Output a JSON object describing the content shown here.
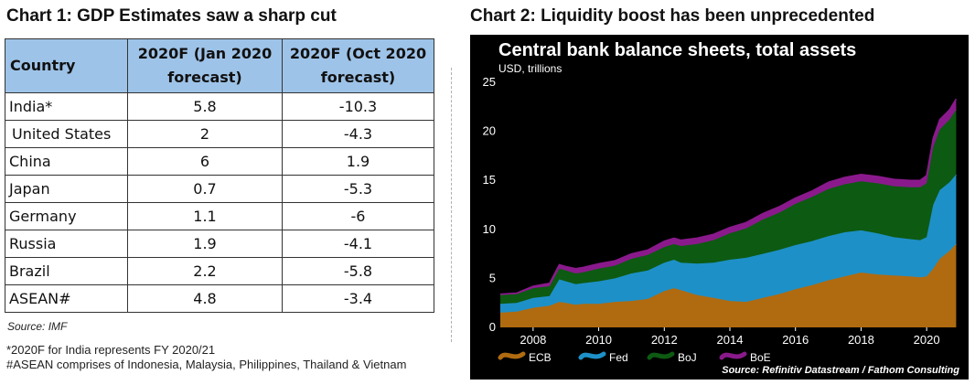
{
  "chart1": {
    "title": "Chart 1: GDP Estimates saw a sharp cut",
    "columns": [
      "Country",
      "2020F (Jan 2020 forecast)",
      "2020F (Oct 2020 forecast)"
    ],
    "rows": [
      [
        "India*",
        "5.8",
        "-10.3"
      ],
      [
        "United States",
        "2",
        "-4.3"
      ],
      [
        "China",
        "6",
        "1.9"
      ],
      [
        "Japan",
        "0.7",
        "-5.3"
      ],
      [
        "Germany",
        "1.1",
        "-6"
      ],
      [
        "Russia",
        "1.9",
        "-4.1"
      ],
      [
        "Brazil",
        "2.2",
        "-5.8"
      ],
      [
        "ASEAN#",
        "4.8",
        "-3.4"
      ]
    ],
    "source": "Source: IMF",
    "footnotes": [
      "*2020F for India represents FY 2020/21",
      "#ASEAN comprises of Indonesia, Malaysia, Philippines, Thailand & Vietnam"
    ]
  },
  "chart2": {
    "heading": "Chart 2: Liquidity boost has been unprecedented",
    "source": "Source: Refinitiv Datastream / Fathom Consulting"
  },
  "chart_data": [
    {
      "type": "table",
      "title": "Chart 1: GDP Estimates saw a sharp cut",
      "columns": [
        "Country",
        "2020F (Jan 2020 forecast)",
        "2020F (Oct 2020 forecast)"
      ],
      "rows": [
        [
          "India*",
          5.8,
          -10.3
        ],
        [
          "United States",
          2,
          -4.3
        ],
        [
          "China",
          6,
          1.9
        ],
        [
          "Japan",
          0.7,
          -5.3
        ],
        [
          "Germany",
          1.1,
          -6
        ],
        [
          "Russia",
          1.9,
          -4.1
        ],
        [
          "Brazil",
          2.2,
          -5.8
        ],
        [
          "ASEAN#",
          4.8,
          -3.4
        ]
      ]
    },
    {
      "type": "area",
      "stacked": true,
      "title": "Central bank balance sheets, total assets",
      "ylabel": "USD, trillions",
      "xlim": [
        2007,
        2021
      ],
      "ylim": [
        0,
        25
      ],
      "yticks": [
        0,
        5,
        10,
        15,
        20,
        25
      ],
      "xticks": [
        2008,
        2010,
        2012,
        2014,
        2016,
        2018,
        2020
      ],
      "grid": false,
      "background": "#000000",
      "legend_position": "bottom-left",
      "x": [
        2007.0,
        2007.5,
        2008.0,
        2008.5,
        2008.8,
        2009.0,
        2009.3,
        2009.5,
        2010.0,
        2010.5,
        2011.0,
        2011.5,
        2012.0,
        2012.3,
        2012.5,
        2013.0,
        2013.5,
        2014.0,
        2014.5,
        2015.0,
        2015.5,
        2016.0,
        2016.5,
        2017.0,
        2017.5,
        2018.0,
        2018.5,
        2019.0,
        2019.5,
        2019.8,
        2020.0,
        2020.2,
        2020.4,
        2020.7,
        2020.9
      ],
      "series": [
        {
          "name": "ECB",
          "color": "#b06b10",
          "values": [
            1.5,
            1.6,
            2.0,
            2.2,
            2.6,
            2.5,
            2.3,
            2.4,
            2.4,
            2.6,
            2.7,
            2.9,
            3.7,
            4.0,
            3.8,
            3.3,
            3.0,
            2.7,
            2.6,
            3.0,
            3.4,
            3.9,
            4.3,
            4.8,
            5.2,
            5.6,
            5.4,
            5.3,
            5.2,
            5.1,
            5.2,
            6.0,
            7.0,
            7.8,
            8.5
          ]
        },
        {
          "name": "Fed",
          "color": "#1e90c8",
          "values": [
            0.9,
            0.9,
            1.0,
            1.0,
            2.3,
            2.2,
            2.1,
            2.1,
            2.3,
            2.4,
            2.8,
            2.9,
            2.9,
            2.9,
            2.8,
            3.2,
            3.6,
            4.2,
            4.5,
            4.5,
            4.5,
            4.5,
            4.5,
            4.5,
            4.5,
            4.3,
            4.2,
            3.9,
            3.8,
            3.8,
            4.0,
            6.5,
            7.0,
            7.0,
            7.1
          ]
        },
        {
          "name": "BoJ",
          "color": "#0d5a12",
          "values": [
            0.9,
            0.9,
            1.0,
            1.0,
            1.1,
            1.1,
            1.1,
            1.1,
            1.3,
            1.3,
            1.5,
            1.6,
            1.6,
            1.6,
            1.7,
            2.0,
            2.3,
            2.7,
            3.0,
            3.5,
            3.8,
            4.2,
            4.5,
            4.8,
            4.9,
            5.0,
            5.1,
            5.2,
            5.3,
            5.4,
            5.5,
            5.9,
            6.2,
            6.4,
            6.6
          ]
        },
        {
          "name": "BoE",
          "color": "#8a1a8c",
          "values": [
            0.1,
            0.1,
            0.2,
            0.3,
            0.4,
            0.4,
            0.5,
            0.5,
            0.5,
            0.5,
            0.5,
            0.5,
            0.6,
            0.6,
            0.6,
            0.6,
            0.6,
            0.6,
            0.6,
            0.6,
            0.6,
            0.6,
            0.6,
            0.7,
            0.7,
            0.7,
            0.7,
            0.7,
            0.7,
            0.7,
            0.8,
            0.9,
            1.0,
            1.0,
            1.1
          ]
        }
      ]
    }
  ]
}
